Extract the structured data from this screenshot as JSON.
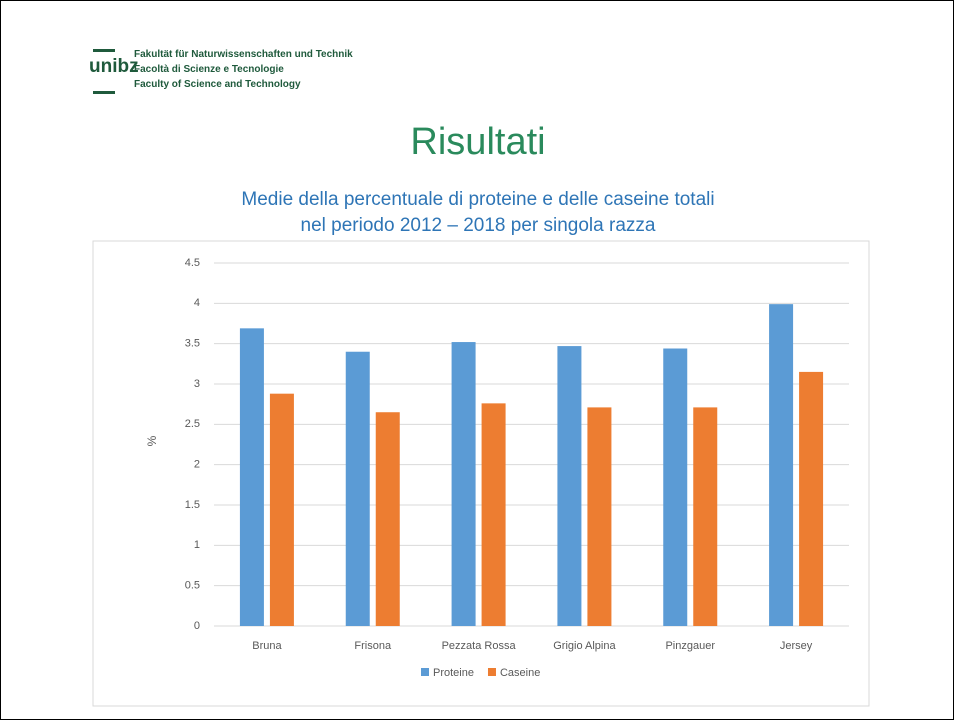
{
  "header": {
    "logo": "unibz",
    "lines": [
      "Fakultät für Naturwissenschaften und Technik",
      "Facoltà di Scienze e Tecnologie",
      "Faculty of Science and Technology"
    ]
  },
  "slide_title": "Risultati",
  "chart_data": {
    "type": "bar",
    "title": [
      "Medie della percentuale di proteine e delle caseine totali",
      "nel periodo 2012 – 2018 per singola razza"
    ],
    "y_label": "%",
    "categories": [
      "Bruna",
      "Frisona",
      "Pezzata Rossa",
      "Grigio Alpina",
      "Pinzgauer",
      "Jersey"
    ],
    "series": [
      {
        "name": "Proteine",
        "color": "#5b9bd5",
        "values": [
          3.69,
          3.4,
          3.52,
          3.47,
          3.44,
          3.99
        ]
      },
      {
        "name": "Caseine",
        "color": "#ed7d31",
        "values": [
          2.88,
          2.65,
          2.76,
          2.71,
          2.71,
          3.15
        ]
      }
    ],
    "ylim": [
      0,
      4.5
    ],
    "yticks": [
      0,
      0.5,
      1,
      1.5,
      2,
      2.5,
      3,
      3.5,
      4,
      4.5
    ],
    "grid": true,
    "legend": "bottom"
  }
}
